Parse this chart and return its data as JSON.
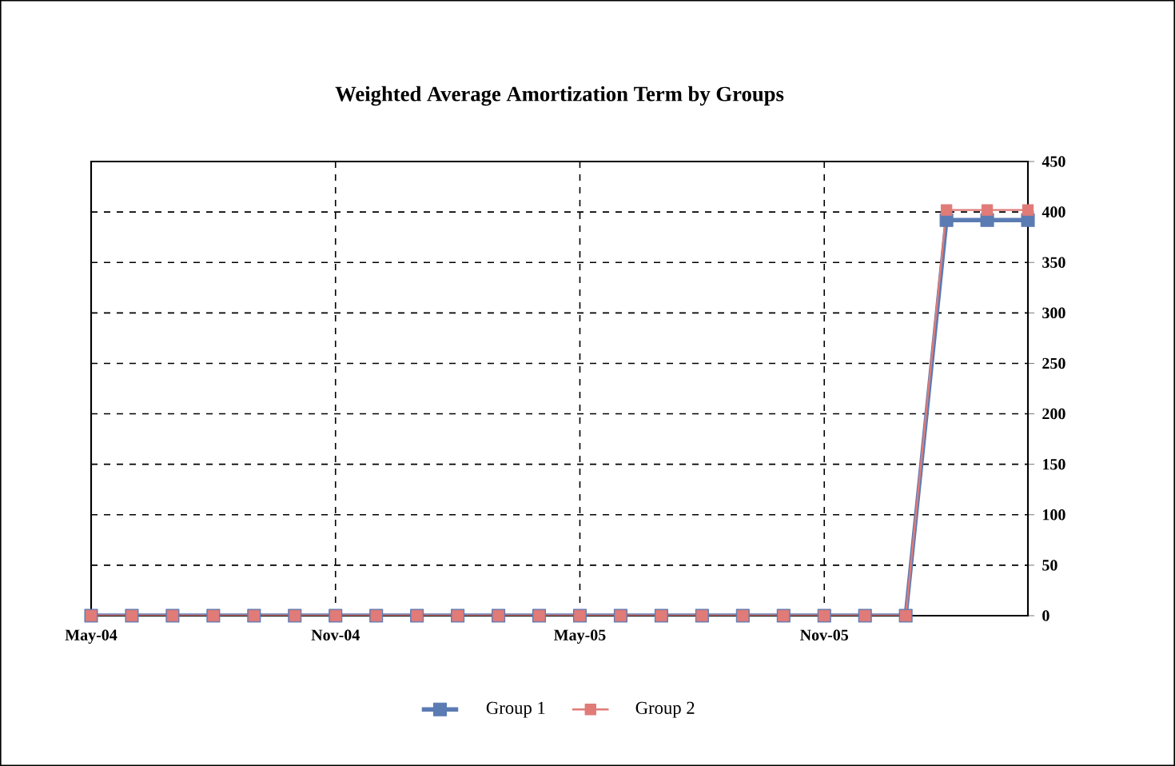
{
  "chart_data": {
    "type": "line",
    "title": "Weighted Average Amortization Term by Groups",
    "x": [
      "2004-05",
      "2004-06",
      "2004-07",
      "2004-08",
      "2004-09",
      "2004-10",
      "2004-11",
      "2004-12",
      "2005-01",
      "2005-02",
      "2005-03",
      "2005-04",
      "2005-05",
      "2005-06",
      "2005-07",
      "2005-08",
      "2005-09",
      "2005-10",
      "2005-11",
      "2005-12",
      "2006-01",
      "2006-02",
      "2006-03",
      "2006-04"
    ],
    "series": [
      {
        "name": "Group 1",
        "color": "#5b7bb3",
        "values": [
          0,
          0,
          0,
          0,
          0,
          0,
          0,
          0,
          0,
          0,
          0,
          0,
          0,
          0,
          0,
          0,
          0,
          0,
          0,
          0,
          0,
          392,
          392,
          392
        ]
      },
      {
        "name": "Group 2",
        "color": "#e07b78",
        "values": [
          0,
          0,
          0,
          0,
          0,
          0,
          0,
          0,
          0,
          0,
          0,
          0,
          0,
          0,
          0,
          0,
          0,
          0,
          0,
          0,
          0,
          402,
          402,
          402
        ]
      }
    ],
    "xlim": [
      "2004-05",
      "2006-04"
    ],
    "xticks": [
      {
        "value": "2004-05",
        "label": "May-04"
      },
      {
        "value": "2004-11",
        "label": "Nov-04"
      },
      {
        "value": "2005-05",
        "label": "May-05"
      },
      {
        "value": "2005-11",
        "label": "Nov-05"
      }
    ],
    "ylim": [
      0,
      450
    ],
    "yticks": [
      0,
      50,
      100,
      150,
      200,
      250,
      300,
      350,
      400,
      450
    ],
    "grid": true,
    "legend": "bottom",
    "marker": "square",
    "line_style": "solid"
  }
}
